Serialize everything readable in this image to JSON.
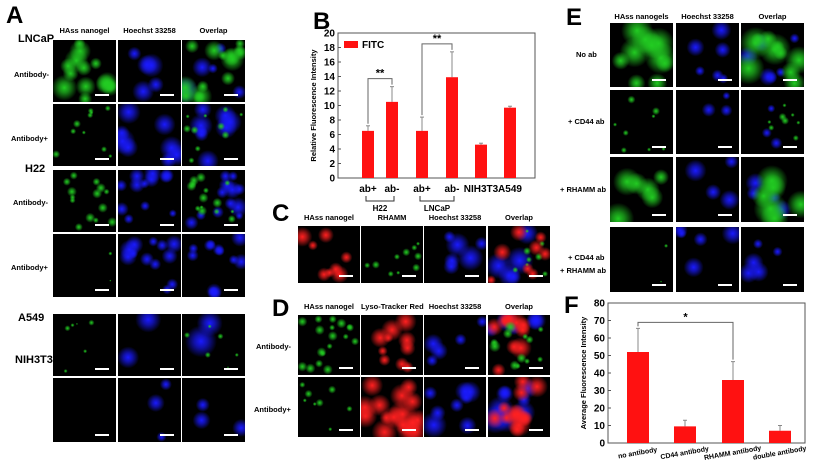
{
  "panel_labels": {
    "a": "A",
    "b": "B",
    "c": "C",
    "d": "D",
    "e": "E",
    "f": "F"
  },
  "panel_a": {
    "headers": [
      "HAss nanogel",
      "Hoechst 33258",
      "Overlap"
    ],
    "groups": [
      "LNCaP",
      "H22",
      "A549",
      "NIH3T3"
    ],
    "row_labels": [
      "Antibody-",
      "Antibody+",
      "Antibody-",
      "Antibody+"
    ]
  },
  "panel_c": {
    "headers": [
      "HAss nanogel",
      "RHAMM",
      "Hoechst 33258",
      "Overlap"
    ]
  },
  "panel_d": {
    "headers": [
      "HAss nanogel",
      "Lyso-Tracker Red",
      "Hoechst 33258",
      "Overlap"
    ],
    "row_labels": [
      "Antibody-",
      "Antibody+"
    ]
  },
  "panel_e": {
    "headers": [
      "HAss nanogels",
      "Hoechst 33258",
      "Overlap"
    ],
    "row_labels": [
      "No ab",
      "+ CD44 ab",
      "+ RHAMM ab",
      "+ CD44 ab",
      "+ RHAMM ab"
    ]
  },
  "colors": {
    "bar": "#ff1111",
    "green_channel": "#22cc22",
    "blue_channel": "#1a1aff",
    "red_channel": "#ff2020"
  },
  "chart_data": [
    {
      "panel": "B",
      "type": "bar",
      "categories": [
        "ab+",
        "ab-",
        "ab+",
        "ab-",
        "NIH3T3",
        "A549"
      ],
      "group_labels": [
        {
          "label": "H22",
          "from": 0,
          "to": 1
        },
        {
          "label": "LNCaP",
          "from": 2,
          "to": 3
        }
      ],
      "series": [
        {
          "name": "FITC",
          "values": [
            6.5,
            10.5,
            6.5,
            13.9,
            4.6,
            9.7
          ],
          "errors": [
            0.7,
            2.1,
            1.9,
            3.5,
            0.2,
            0.2
          ]
        }
      ],
      "significance": [
        {
          "from": 0,
          "to": 1,
          "label": "**"
        },
        {
          "from": 2,
          "to": 3,
          "label": "**"
        }
      ],
      "ylabel": "Relative Fluorescence Intensity",
      "ylim": [
        0,
        20
      ],
      "yticks": [
        0,
        2,
        4,
        6,
        8,
        10,
        12,
        14,
        16,
        18,
        20
      ],
      "legend": "top-left",
      "grid": false
    },
    {
      "panel": "F",
      "type": "bar",
      "categories": [
        "no antibody",
        "CD44 antibody",
        "RHAMM antibody",
        "double antibody"
      ],
      "series": [
        {
          "values": [
            52,
            9.5,
            36,
            7
          ],
          "errors": [
            13.5,
            3.5,
            10.5,
            3
          ]
        }
      ],
      "significance": [
        {
          "from": 0,
          "to": 2,
          "label": "*"
        }
      ],
      "ylabel": "Average Fluorescence Intensity",
      "ylim": [
        0,
        80
      ],
      "yticks": [
        0,
        10,
        20,
        30,
        40,
        50,
        60,
        70,
        80
      ],
      "grid": false
    }
  ]
}
